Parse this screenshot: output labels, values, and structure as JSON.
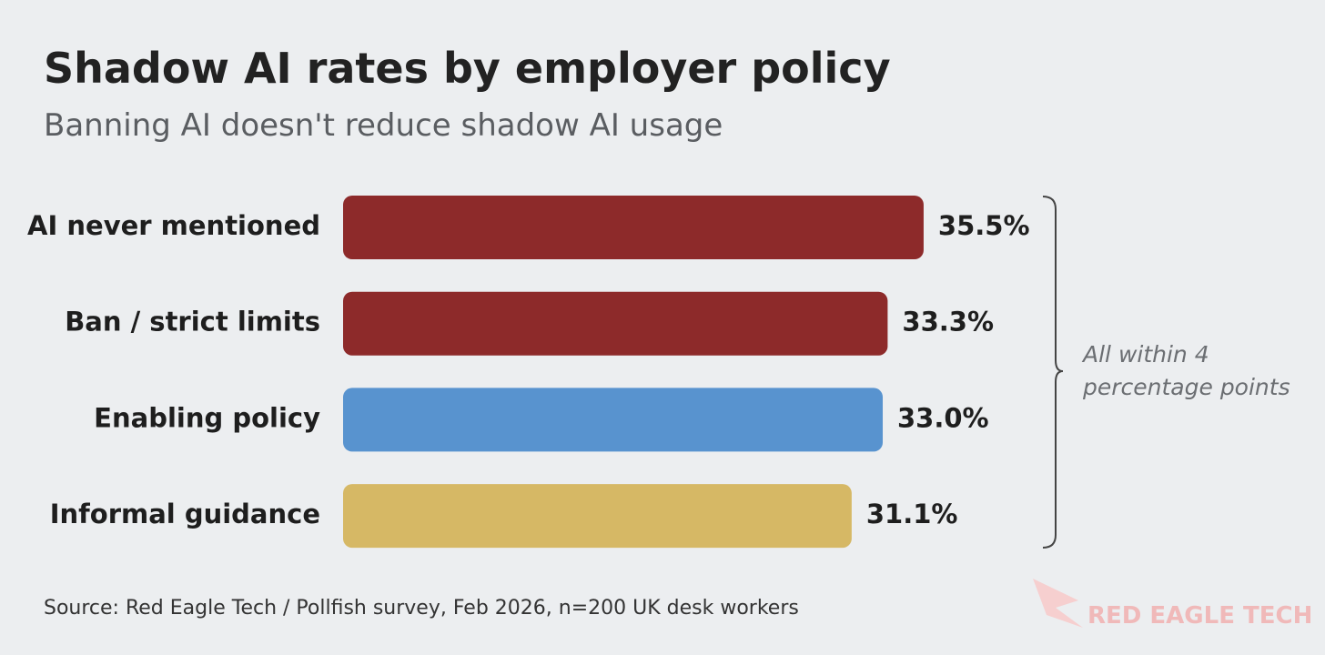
{
  "chart_data": {
    "type": "bar",
    "orientation": "horizontal",
    "title": "Shadow AI rates by employer policy",
    "subtitle": "Banning AI doesn't reduce shadow AI usage",
    "categories": [
      "AI never mentioned",
      "Ban / strict limits",
      "Enabling policy",
      "Informal guidance"
    ],
    "values": [
      35.5,
      33.3,
      33.0,
      31.1
    ],
    "value_labels": [
      "35.5%",
      "33.3%",
      "33.0%",
      "31.1%"
    ],
    "colors": [
      "#8d2a2a",
      "#8d2a2a",
      "#5893cf",
      "#d6b865"
    ],
    "annotation": "All within 4 percentage points",
    "source": "Source: Red Eagle Tech / Pollfish survey, Feb 2026, n=200 UK desk workers",
    "logo": "RED EAGLE TECH"
  }
}
